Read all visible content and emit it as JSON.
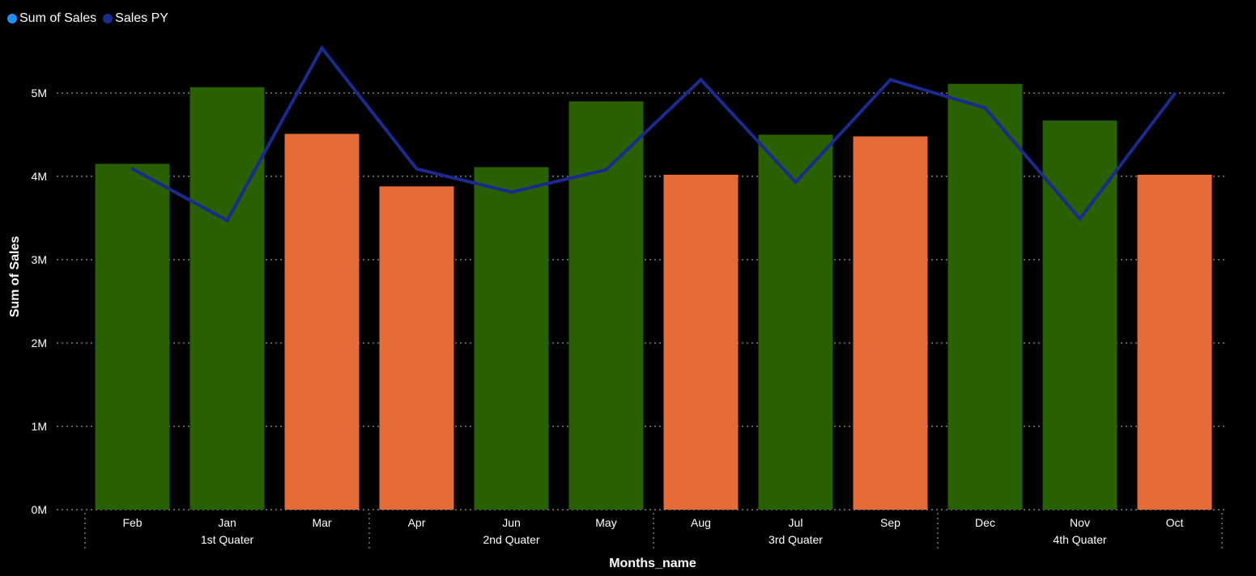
{
  "legend": {
    "items": [
      {
        "label": "Sum of Sales",
        "color": "#1E90FF"
      },
      {
        "label": "Sales PY",
        "color": "#1B2A8F"
      }
    ]
  },
  "chart_data": {
    "type": "bar",
    "categories": [
      "Feb",
      "Jan",
      "Mar",
      "Apr",
      "Jun",
      "May",
      "Aug",
      "Jul",
      "Sep",
      "Dec",
      "Nov",
      "Oct"
    ],
    "groups": [
      {
        "label": "1st Quater",
        "categories": [
          "Feb",
          "Jan",
          "Mar"
        ]
      },
      {
        "label": "2nd Quater",
        "categories": [
          "Apr",
          "Jun",
          "May"
        ]
      },
      {
        "label": "3rd Quater",
        "categories": [
          "Aug",
          "Jul",
          "Sep"
        ]
      },
      {
        "label": "4th Quater",
        "categories": [
          "Dec",
          "Nov",
          "Oct"
        ]
      }
    ],
    "series": [
      {
        "name": "Sum of Sales",
        "type": "bar",
        "values": [
          4.15,
          5.07,
          4.51,
          3.88,
          4.11,
          4.9,
          4.02,
          4.5,
          4.48,
          5.11,
          4.67,
          4.02
        ],
        "bar_colors": [
          "#2A6100",
          "#2A6100",
          "#E56C39",
          "#E56C39",
          "#2A6100",
          "#2A6100",
          "#E56C39",
          "#2A6100",
          "#E56C39",
          "#2A6100",
          "#2A6100",
          "#E56C39"
        ]
      },
      {
        "name": "Sales PY",
        "type": "line",
        "color": "#1B2A8F",
        "values": [
          4.09,
          3.47,
          5.54,
          4.09,
          3.81,
          4.08,
          5.16,
          3.93,
          5.16,
          4.82,
          3.49,
          4.99
        ]
      }
    ],
    "value_unit": "M",
    "xlabel": "Months_name",
    "ylabel": "Sum of Sales",
    "ylim": [
      0,
      5.6
    ],
    "yticks": [
      {
        "value": 0,
        "label": "0M"
      },
      {
        "value": 1,
        "label": "1M"
      },
      {
        "value": 2,
        "label": "2M"
      },
      {
        "value": 3,
        "label": "3M"
      },
      {
        "value": 4,
        "label": "4M"
      },
      {
        "value": 5,
        "label": "5M"
      }
    ],
    "grid": true,
    "legend_position": "top-left"
  }
}
